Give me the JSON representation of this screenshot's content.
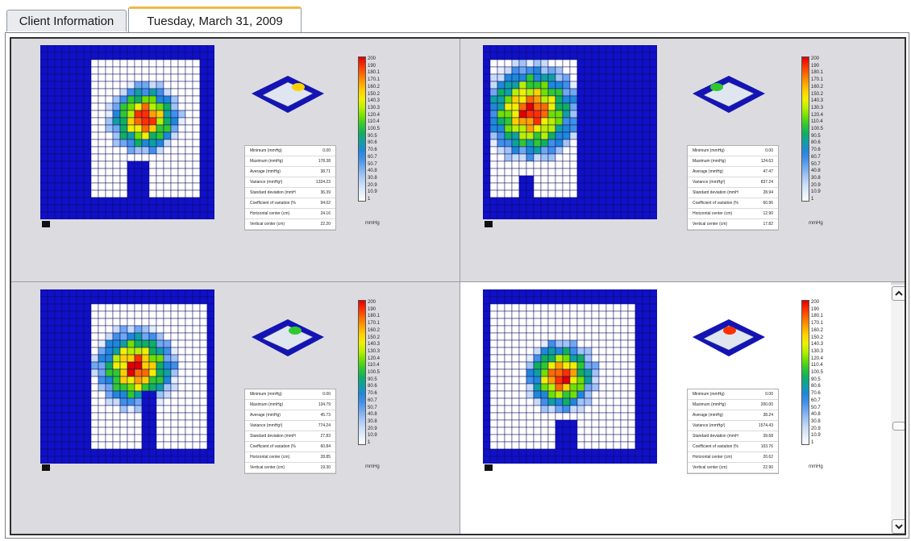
{
  "tabs": [
    {
      "label": "Client Information",
      "active": false
    },
    {
      "label": "Tuesday, March 31, 2009",
      "active": true
    }
  ],
  "scale": {
    "labels": [
      "200",
      "190",
      "180.1",
      "170.1",
      "160.2",
      "150.2",
      "140.3",
      "130.3",
      "120.4",
      "110.4",
      "100.5",
      "90.5",
      "80.6",
      "70.6",
      "60.7",
      "50.7",
      "40.8",
      "30.8",
      "20.9",
      "10.9",
      "1"
    ],
    "unit": "mmHg"
  },
  "panels": [
    {
      "stats": [
        {
          "key": "Minimum (mmHg)",
          "value": "0.00"
        },
        {
          "key": "Maximum (mmHg)",
          "value": "178.38"
        },
        {
          "key": "Average (mmHg)",
          "value": "38.71"
        },
        {
          "key": "Variance (mmHg²)",
          "value": "1324.23"
        },
        {
          "key": "Standard deviation (mmH",
          "value": "36.39"
        },
        {
          "key": "Coefficient of variation (%",
          "value": "94.02"
        },
        {
          "key": "Horizontal center (cm)",
          "value": "24.16"
        },
        {
          "key": "Vertical center (cm)",
          "value": "22.20"
        }
      ]
    },
    {
      "stats": [
        {
          "key": "Minimum (mmHg)",
          "value": "0.00"
        },
        {
          "key": "Maximum (mmHg)",
          "value": "124.63"
        },
        {
          "key": "Average (mmHg)",
          "value": "47.47"
        },
        {
          "key": "Variance (mmHg²)",
          "value": "837.24"
        },
        {
          "key": "Standard deviation (mmH",
          "value": "28.94"
        },
        {
          "key": "Coefficient of variation (%",
          "value": "60.96"
        },
        {
          "key": "Horizontal center (cm)",
          "value": "12.90"
        },
        {
          "key": "Vertical center (cm)",
          "value": "17.82"
        }
      ]
    },
    {
      "stats": [
        {
          "key": "Minimum (mmHg)",
          "value": "0.00"
        },
        {
          "key": "Maximum (mmHg)",
          "value": "134.79"
        },
        {
          "key": "Average (mmHg)",
          "value": "45.73"
        },
        {
          "key": "Variance (mmHg²)",
          "value": "774.24"
        },
        {
          "key": "Standard deviation (mmH",
          "value": "27.83"
        },
        {
          "key": "Coefficient of variation (%",
          "value": "60.84"
        },
        {
          "key": "Horizontal center (cm)",
          "value": "28.85"
        },
        {
          "key": "Vertical center (cm)",
          "value": "19.30"
        }
      ]
    },
    {
      "stats": [
        {
          "key": "Minimum (mmHg)",
          "value": "0.00"
        },
        {
          "key": "Maximum (mmHg)",
          "value": "200.00"
        },
        {
          "key": "Average (mmHg)",
          "value": "38.24"
        },
        {
          "key": "Variance (mmHg²)",
          "value": "1574.43"
        },
        {
          "key": "Standard deviation (mmH",
          "value": "39.68"
        },
        {
          "key": "Coefficient of variation (%",
          "value": "103.76"
        },
        {
          "key": "Horizontal center (cm)",
          "value": "20.62"
        },
        {
          "key": "Vertical center (cm)",
          "value": "22.90"
        }
      ]
    }
  ],
  "colors": {
    "map_background": "#1010c8",
    "tab_accent": "#f0b945",
    "scale": [
      "#e00000",
      "#ff3000",
      "#ff6a00",
      "#ffa000",
      "#ffd000",
      "#f0f000",
      "#b8f000",
      "#70e000",
      "#30c830",
      "#10b060",
      "#10a0a0",
      "#2088d8",
      "#4090e8",
      "#70a8f0",
      "#a0c4f4",
      "#c8dcf8",
      "#e4eefc",
      "#ffffff"
    ]
  },
  "icons": {
    "scroll_up": "chevron-up-icon",
    "scroll_down": "chevron-down-icon"
  }
}
